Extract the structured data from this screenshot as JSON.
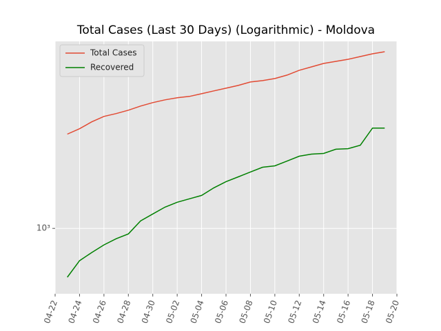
{
  "chart_data": {
    "type": "line",
    "title": "Total Cases (Last 30 Days) (Logarithmic) - Moldova",
    "x": [
      "04-23",
      "04-24",
      "04-25",
      "04-26",
      "04-27",
      "04-28",
      "04-29",
      "04-30",
      "05-01",
      "05-02",
      "05-03",
      "05-04",
      "05-05",
      "05-06",
      "05-07",
      "05-08",
      "05-09",
      "05-10",
      "05-11",
      "05-12",
      "05-13",
      "05-14",
      "05-15",
      "05-16",
      "05-17",
      "05-18",
      "05-19"
    ],
    "series": [
      {
        "name": "Total Cases",
        "color": "#e24a33",
        "values": [
          2864,
          3043,
          3286,
          3492,
          3605,
          3743,
          3920,
          4074,
          4200,
          4299,
          4365,
          4500,
          4642,
          4786,
          4934,
          5128,
          5209,
          5330,
          5536,
          5845,
          6070,
          6310,
          6457,
          6607,
          6813,
          7025,
          7190
        ]
      },
      {
        "name": "Recovered",
        "color": "#008000",
        "values": [
          580,
          697,
          764,
          832,
          891,
          940,
          1088,
          1175,
          1268,
          1339,
          1391,
          1445,
          1573,
          1686,
          1778,
          1877,
          1980,
          2011,
          2121,
          2239,
          2291,
          2309,
          2421,
          2436,
          2531,
          3067,
          3067
        ]
      }
    ],
    "xlim": [
      "04-22",
      "05-20"
    ],
    "xticks": [
      "04-22",
      "04-24",
      "04-26",
      "04-28",
      "04-30",
      "05-02",
      "05-04",
      "05-06",
      "05-08",
      "05-10",
      "05-12",
      "05-14",
      "05-16",
      "05-18",
      "05-20"
    ],
    "ylim": [
      482,
      8070
    ],
    "yticks": [
      {
        "value": 1000,
        "label": "10³"
      }
    ],
    "log_y": true,
    "grid": true,
    "legend": "upper-left"
  }
}
